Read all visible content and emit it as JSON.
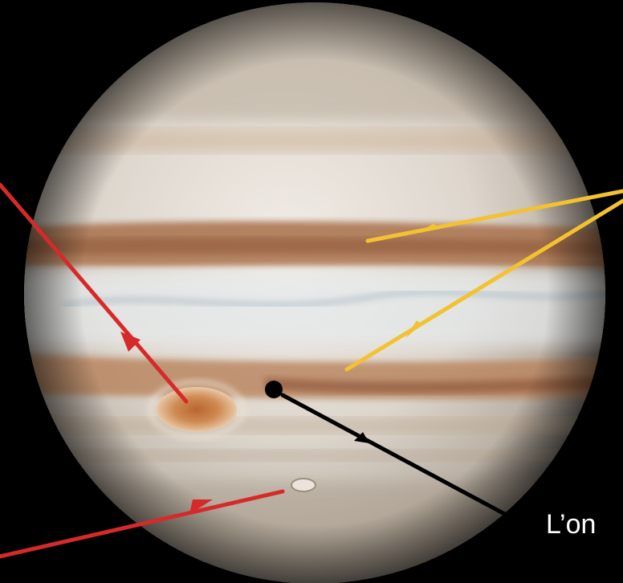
{
  "caption": "L’on",
  "colors": {
    "background": "#000000",
    "arrow_red": "#d62a2a",
    "arrow_yellow": "#f2c230",
    "arrow_black": "#000000",
    "caption_text": "#ffffff"
  }
}
